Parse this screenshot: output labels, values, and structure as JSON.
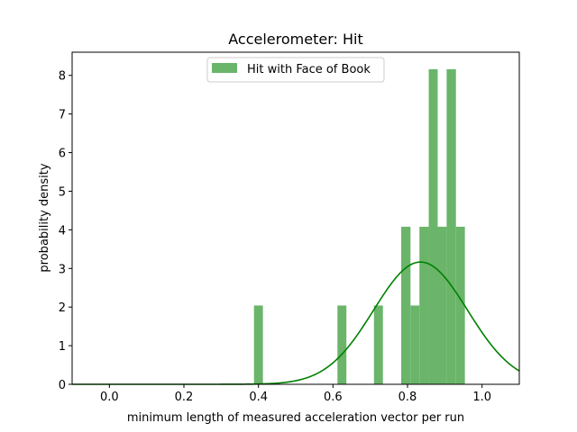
{
  "chart_data": {
    "type": "bar",
    "title": "Accelerometer: Hit",
    "xlabel": "minimum length of measured acceleration vector per run",
    "ylabel": "probability density",
    "xlim": [
      -0.1,
      1.1
    ],
    "ylim": [
      0,
      8.6
    ],
    "xticks": [
      "0.0",
      "0.2",
      "0.4",
      "0.6",
      "0.8",
      "1.0"
    ],
    "xtick_values": [
      0.0,
      0.2,
      0.4,
      0.6,
      0.8,
      1.0
    ],
    "yticks": [
      "0",
      "1",
      "2",
      "3",
      "4",
      "5",
      "6",
      "7",
      "8"
    ],
    "ytick_values": [
      0,
      1,
      2,
      3,
      4,
      5,
      6,
      7,
      8
    ],
    "grid": false,
    "legend_placement": "upper-center",
    "series": [
      {
        "name": "Hit with Face of Book",
        "kind": "histogram",
        "color": "#6ab56a",
        "bins": [
          {
            "x0": 0.388,
            "x1": 0.412,
            "value": 2.04
          },
          {
            "x0": 0.612,
            "x1": 0.636,
            "value": 2.04
          },
          {
            "x0": 0.71,
            "x1": 0.734,
            "value": 2.04
          },
          {
            "x0": 0.783,
            "x1": 0.808,
            "value": 4.08
          },
          {
            "x0": 0.808,
            "x1": 0.832,
            "value": 2.04
          },
          {
            "x0": 0.832,
            "x1": 0.857,
            "value": 4.08
          },
          {
            "x0": 0.857,
            "x1": 0.881,
            "value": 8.16
          },
          {
            "x0": 0.881,
            "x1": 0.905,
            "value": 4.08
          },
          {
            "x0": 0.905,
            "x1": 0.93,
            "value": 8.16
          },
          {
            "x0": 0.93,
            "x1": 0.954,
            "value": 4.08
          }
        ]
      },
      {
        "name": "",
        "kind": "normal-fit",
        "color": "#008000",
        "mean": 0.835,
        "std": 0.126
      }
    ]
  }
}
